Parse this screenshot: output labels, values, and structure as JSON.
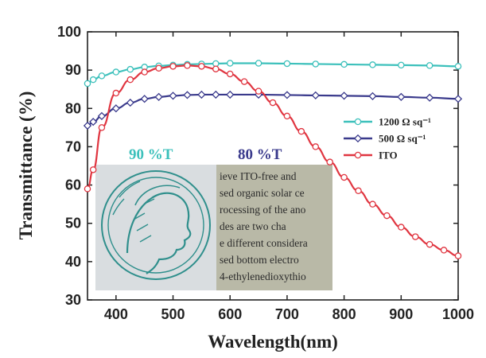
{
  "chart_data": {
    "type": "line",
    "title": "",
    "xlabel": "Wavelength(nm)",
    "ylabel": "Transmittance (%)",
    "xlim": [
      350,
      1000
    ],
    "ylim": [
      30,
      100
    ],
    "xticks": [
      400,
      500,
      600,
      700,
      800,
      900,
      1000
    ],
    "yticks": [
      30,
      40,
      50,
      60,
      70,
      80,
      90,
      100
    ],
    "legend_position": "right",
    "series": [
      {
        "name": "1200 Ω sq⁻¹",
        "color": "#3cc0bb",
        "marker": "circle",
        "x": [
          350,
          360,
          375,
          400,
          425,
          450,
          475,
          500,
          525,
          550,
          575,
          600,
          650,
          700,
          750,
          800,
          850,
          900,
          950,
          1000
        ],
        "y": [
          86.5,
          87.5,
          88.5,
          89.5,
          90.2,
          90.8,
          91.1,
          91.3,
          91.5,
          91.6,
          91.7,
          91.8,
          91.8,
          91.7,
          91.6,
          91.5,
          91.4,
          91.3,
          91.2,
          91.0
        ]
      },
      {
        "name": "500 Ω sq⁻¹",
        "color": "#3a3a8c",
        "marker": "diamond",
        "x": [
          350,
          360,
          375,
          400,
          425,
          450,
          475,
          500,
          525,
          550,
          575,
          600,
          650,
          700,
          750,
          800,
          850,
          900,
          950,
          1000
        ],
        "y": [
          75.5,
          76.5,
          78.0,
          80.0,
          81.5,
          82.5,
          83.0,
          83.3,
          83.5,
          83.6,
          83.6,
          83.6,
          83.6,
          83.5,
          83.4,
          83.3,
          83.2,
          83.0,
          82.8,
          82.5
        ]
      },
      {
        "name": "ITO",
        "color": "#e03540",
        "marker": "circle-open",
        "x": [
          350,
          360,
          375,
          400,
          425,
          450,
          475,
          500,
          525,
          550,
          575,
          600,
          625,
          650,
          675,
          700,
          725,
          750,
          775,
          800,
          825,
          850,
          875,
          900,
          925,
          950,
          975,
          1000
        ],
        "y": [
          59,
          64,
          75,
          84,
          87.5,
          89.5,
          90.5,
          91.0,
          91.2,
          91.0,
          90.3,
          89.0,
          87.0,
          84.5,
          81.5,
          78.0,
          74.0,
          70.0,
          66.0,
          62.0,
          58.5,
          55.0,
          52.0,
          49.0,
          46.5,
          44.5,
          43.0,
          41.5
        ]
      }
    ],
    "annotations": [
      {
        "text": "90 %T",
        "color": "#3cc0bb"
      },
      {
        "text": "80 %T",
        "color": "#3a3a8c"
      }
    ]
  },
  "inset_photo": {
    "logo": "minerva-head-logo",
    "text_lines": [
      "ieve ITO-free and",
      "sed organic solar ce",
      "rocessing of the ano",
      "des are two cha",
      "e different considera",
      "sed bottom electro",
      "4-ethylenedioxythio"
    ]
  }
}
